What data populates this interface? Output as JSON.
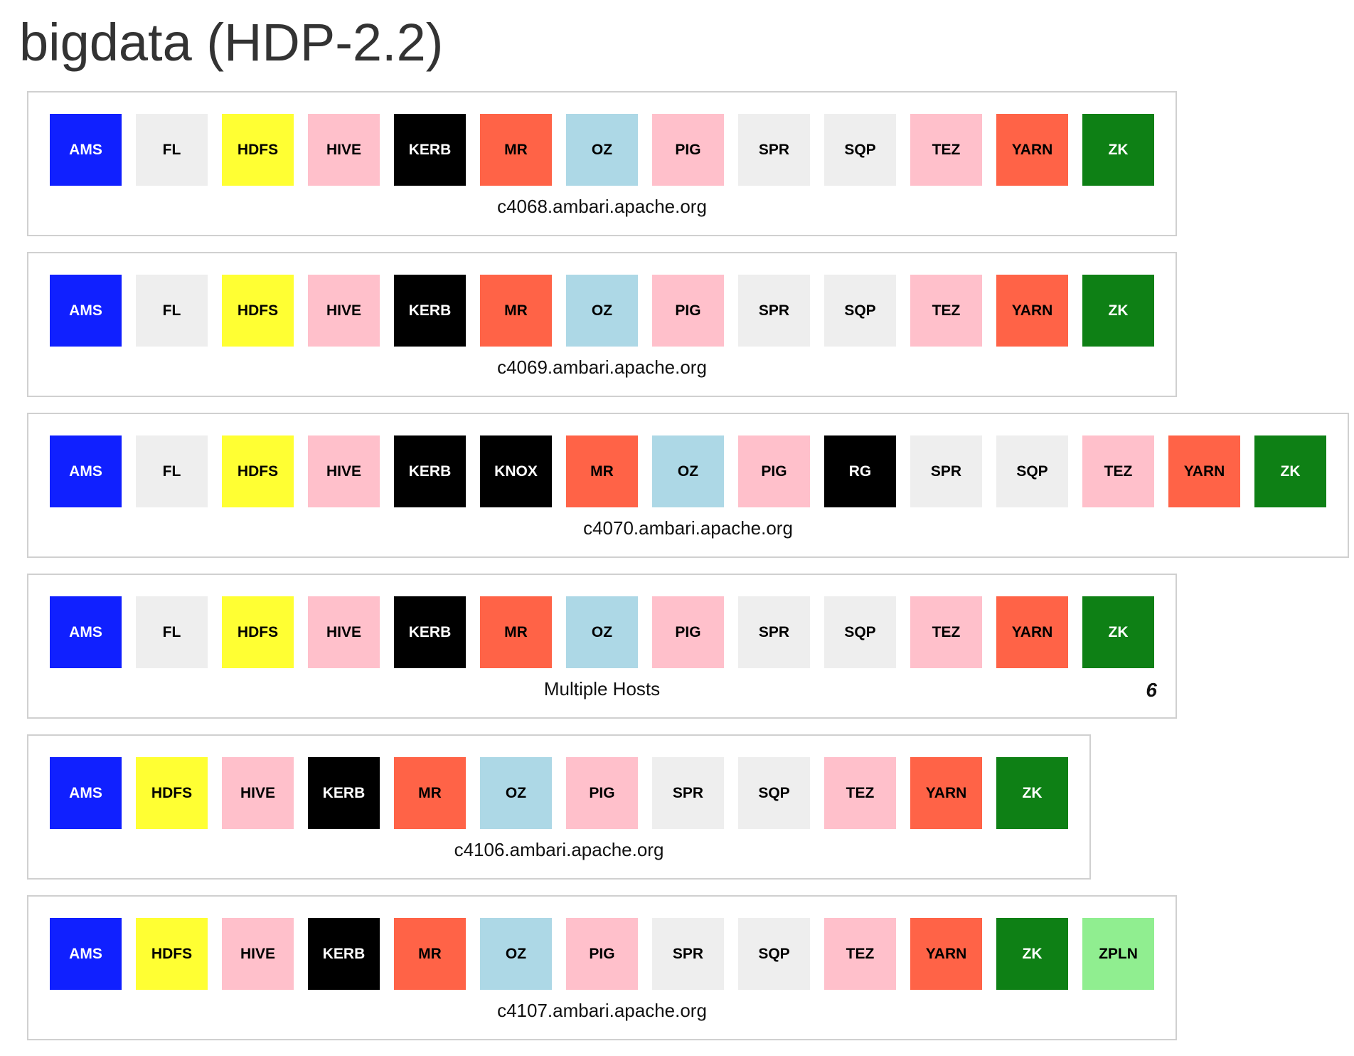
{
  "title": "bigdata (HDP-2.2)",
  "service_colors": {
    "AMS": {
      "bg": "#1020ff",
      "fg": "#ffffff"
    },
    "FL": {
      "bg": "#eeeeee",
      "fg": "#000000"
    },
    "HDFS": {
      "bg": "#ffff33",
      "fg": "#000000"
    },
    "HIVE": {
      "bg": "#ffc0cb",
      "fg": "#000000"
    },
    "KERB": {
      "bg": "#000000",
      "fg": "#ffffff"
    },
    "KNOX": {
      "bg": "#000000",
      "fg": "#ffffff"
    },
    "MR": {
      "bg": "#ff6347",
      "fg": "#000000"
    },
    "OZ": {
      "bg": "#add8e6",
      "fg": "#000000"
    },
    "PIG": {
      "bg": "#ffc0cb",
      "fg": "#000000"
    },
    "RG": {
      "bg": "#000000",
      "fg": "#ffffff"
    },
    "SPR": {
      "bg": "#eeeeee",
      "fg": "#000000"
    },
    "SQP": {
      "bg": "#eeeeee",
      "fg": "#000000"
    },
    "TEZ": {
      "bg": "#ffc0cb",
      "fg": "#000000"
    },
    "YARN": {
      "bg": "#ff6347",
      "fg": "#000000"
    },
    "ZK": {
      "bg": "#0e8015",
      "fg": "#ffffff"
    },
    "ZPLN": {
      "bg": "#90ee90",
      "fg": "#000000"
    }
  },
  "hosts": [
    {
      "name": "c4068.ambari.apache.org",
      "count": "",
      "services": [
        "AMS",
        "FL",
        "HDFS",
        "HIVE",
        "KERB",
        "MR",
        "OZ",
        "PIG",
        "SPR",
        "SQP",
        "TEZ",
        "YARN",
        "ZK"
      ]
    },
    {
      "name": "c4069.ambari.apache.org",
      "count": "",
      "services": [
        "AMS",
        "FL",
        "HDFS",
        "HIVE",
        "KERB",
        "MR",
        "OZ",
        "PIG",
        "SPR",
        "SQP",
        "TEZ",
        "YARN",
        "ZK"
      ]
    },
    {
      "name": "c4070.ambari.apache.org",
      "count": "",
      "services": [
        "AMS",
        "FL",
        "HDFS",
        "HIVE",
        "KERB",
        "KNOX",
        "MR",
        "OZ",
        "PIG",
        "RG",
        "SPR",
        "SQP",
        "TEZ",
        "YARN",
        "ZK"
      ]
    },
    {
      "name": "Multiple Hosts",
      "count": "6",
      "services": [
        "AMS",
        "FL",
        "HDFS",
        "HIVE",
        "KERB",
        "MR",
        "OZ",
        "PIG",
        "SPR",
        "SQP",
        "TEZ",
        "YARN",
        "ZK"
      ]
    },
    {
      "name": "c4106.ambari.apache.org",
      "count": "",
      "services": [
        "AMS",
        "HDFS",
        "HIVE",
        "KERB",
        "MR",
        "OZ",
        "PIG",
        "SPR",
        "SQP",
        "TEZ",
        "YARN",
        "ZK"
      ]
    },
    {
      "name": "c4107.ambari.apache.org",
      "count": "",
      "services": [
        "AMS",
        "HDFS",
        "HIVE",
        "KERB",
        "MR",
        "OZ",
        "PIG",
        "SPR",
        "SQP",
        "TEZ",
        "YARN",
        "ZK",
        "ZPLN"
      ]
    }
  ]
}
